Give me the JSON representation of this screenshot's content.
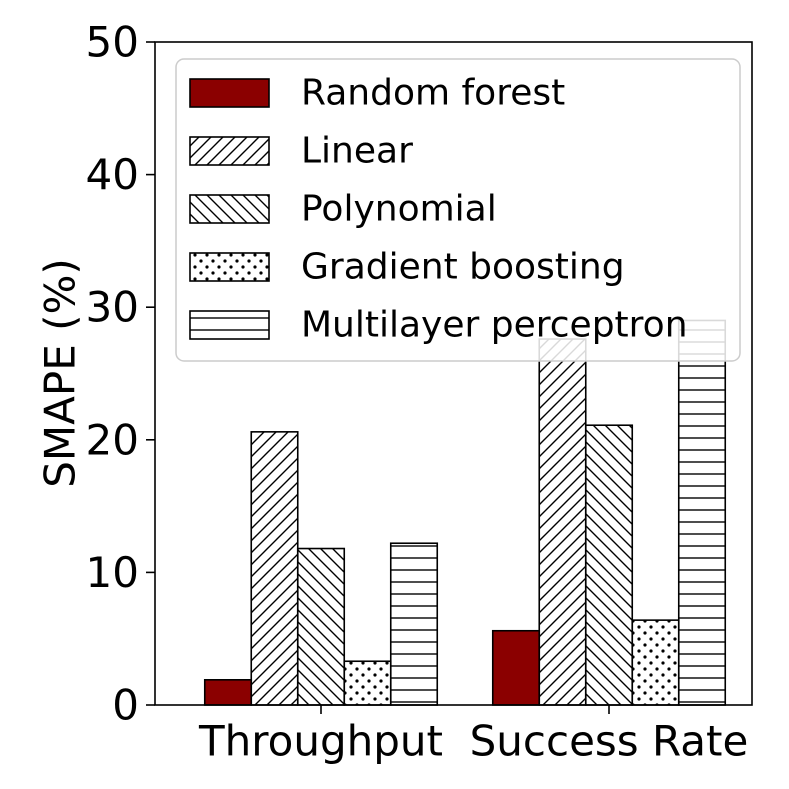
{
  "chart_data": {
    "type": "bar",
    "title": "",
    "xlabel": "",
    "ylabel": "SMAPE (%)",
    "ylim": [
      0,
      50
    ],
    "yticks": [
      0,
      10,
      20,
      30,
      40,
      50
    ],
    "categories": [
      "Throughput",
      "Success Rate"
    ],
    "grid": false,
    "legend_position": "top-right",
    "series": [
      {
        "name": "Random forest",
        "values": [
          1.9,
          5.6
        ],
        "fill": "#8b0000",
        "pattern": "solid"
      },
      {
        "name": "Linear",
        "values": [
          20.6,
          27.6
        ],
        "fill": "#ffffff",
        "pattern": "diag-right"
      },
      {
        "name": "Polynomial",
        "values": [
          11.8,
          21.1
        ],
        "fill": "#ffffff",
        "pattern": "diag-left"
      },
      {
        "name": "Gradient boosting",
        "values": [
          3.3,
          6.4
        ],
        "fill": "#ffffff",
        "pattern": "dots"
      },
      {
        "name": "Multilayer perceptron",
        "values": [
          12.2,
          29.0
        ],
        "fill": "#ffffff",
        "pattern": "horizontal"
      }
    ]
  }
}
